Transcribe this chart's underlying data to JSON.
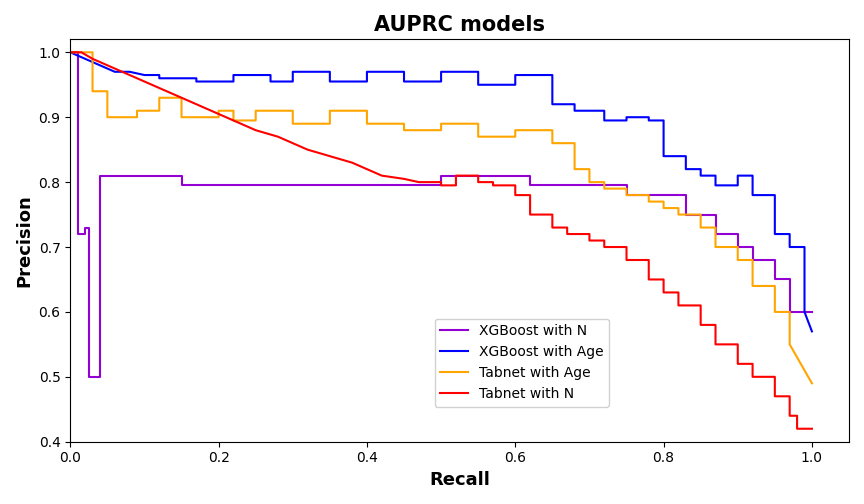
{
  "title": "AUPRC models",
  "xlabel": "Recall",
  "ylabel": "Precision",
  "xlim": [
    0.0,
    1.05
  ],
  "ylim": [
    0.4,
    1.02
  ],
  "colors": {
    "xgboost_n": "#9400D3",
    "xgboost_age": "#0000FF",
    "tabnet_age": "#FFA500",
    "tabnet_n": "#FF0000"
  },
  "xgb_n_r": [
    0.0,
    0.01,
    0.01,
    0.02,
    0.02,
    0.025,
    0.025,
    0.04,
    0.04,
    0.15,
    0.15,
    0.5,
    0.5,
    0.62,
    0.62,
    0.75,
    0.75,
    0.83,
    0.83,
    0.87,
    0.87,
    0.9,
    0.9,
    0.92,
    0.92,
    0.95,
    0.95,
    0.97,
    0.97,
    1.0
  ],
  "xgb_n_p": [
    1.0,
    1.0,
    0.72,
    0.72,
    0.73,
    0.73,
    0.5,
    0.5,
    0.81,
    0.81,
    0.795,
    0.795,
    0.81,
    0.81,
    0.795,
    0.795,
    0.78,
    0.78,
    0.75,
    0.75,
    0.72,
    0.72,
    0.7,
    0.7,
    0.68,
    0.68,
    0.65,
    0.65,
    0.6,
    0.6
  ],
  "xgb_age_r": [
    0.0,
    0.02,
    0.04,
    0.06,
    0.08,
    0.1,
    0.12,
    0.12,
    0.17,
    0.17,
    0.22,
    0.22,
    0.27,
    0.27,
    0.3,
    0.3,
    0.35,
    0.35,
    0.4,
    0.4,
    0.45,
    0.45,
    0.5,
    0.5,
    0.55,
    0.55,
    0.6,
    0.6,
    0.65,
    0.65,
    0.68,
    0.68,
    0.72,
    0.72,
    0.75,
    0.75,
    0.78,
    0.78,
    0.8,
    0.8,
    0.83,
    0.83,
    0.85,
    0.85,
    0.87,
    0.87,
    0.9,
    0.9,
    0.92,
    0.92,
    0.95,
    0.95,
    0.97,
    0.97,
    0.99,
    0.99,
    1.0
  ],
  "xgb_age_p": [
    1.0,
    0.99,
    0.98,
    0.97,
    0.97,
    0.965,
    0.965,
    0.96,
    0.96,
    0.955,
    0.955,
    0.965,
    0.965,
    0.955,
    0.955,
    0.97,
    0.97,
    0.955,
    0.955,
    0.97,
    0.97,
    0.955,
    0.955,
    0.97,
    0.97,
    0.95,
    0.95,
    0.965,
    0.965,
    0.92,
    0.92,
    0.91,
    0.91,
    0.895,
    0.895,
    0.9,
    0.9,
    0.895,
    0.895,
    0.84,
    0.84,
    0.82,
    0.82,
    0.81,
    0.81,
    0.795,
    0.795,
    0.81,
    0.81,
    0.78,
    0.78,
    0.72,
    0.72,
    0.7,
    0.7,
    0.6,
    0.57
  ],
  "tab_age_r": [
    0.0,
    0.03,
    0.03,
    0.05,
    0.05,
    0.09,
    0.09,
    0.12,
    0.12,
    0.15,
    0.15,
    0.2,
    0.2,
    0.22,
    0.22,
    0.25,
    0.25,
    0.3,
    0.3,
    0.35,
    0.35,
    0.4,
    0.4,
    0.45,
    0.45,
    0.5,
    0.5,
    0.55,
    0.55,
    0.6,
    0.6,
    0.65,
    0.65,
    0.68,
    0.68,
    0.7,
    0.7,
    0.72,
    0.72,
    0.75,
    0.75,
    0.78,
    0.78,
    0.8,
    0.8,
    0.82,
    0.82,
    0.85,
    0.85,
    0.87,
    0.87,
    0.9,
    0.9,
    0.92,
    0.92,
    0.95,
    0.95,
    0.97,
    0.97,
    1.0
  ],
  "tab_age_p": [
    1.0,
    1.0,
    0.94,
    0.94,
    0.9,
    0.9,
    0.91,
    0.91,
    0.93,
    0.93,
    0.9,
    0.9,
    0.91,
    0.91,
    0.895,
    0.895,
    0.91,
    0.91,
    0.89,
    0.89,
    0.91,
    0.91,
    0.89,
    0.89,
    0.88,
    0.88,
    0.89,
    0.89,
    0.87,
    0.87,
    0.88,
    0.88,
    0.86,
    0.86,
    0.82,
    0.82,
    0.8,
    0.8,
    0.79,
    0.79,
    0.78,
    0.78,
    0.77,
    0.77,
    0.76,
    0.76,
    0.75,
    0.75,
    0.73,
    0.73,
    0.7,
    0.7,
    0.68,
    0.68,
    0.64,
    0.64,
    0.6,
    0.6,
    0.55,
    0.49
  ],
  "tab_n_r": [
    0.0,
    0.015,
    0.03,
    0.05,
    0.07,
    0.09,
    0.11,
    0.13,
    0.15,
    0.17,
    0.2,
    0.22,
    0.25,
    0.28,
    0.3,
    0.32,
    0.35,
    0.38,
    0.4,
    0.42,
    0.45,
    0.47,
    0.5,
    0.5,
    0.52,
    0.52,
    0.55,
    0.55,
    0.57,
    0.57,
    0.6,
    0.6,
    0.62,
    0.62,
    0.65,
    0.65,
    0.67,
    0.67,
    0.7,
    0.7,
    0.72,
    0.72,
    0.75,
    0.75,
    0.78,
    0.78,
    0.8,
    0.8,
    0.82,
    0.82,
    0.85,
    0.85,
    0.87,
    0.87,
    0.9,
    0.9,
    0.92,
    0.92,
    0.95,
    0.95,
    0.97,
    0.97,
    0.98,
    0.98,
    1.0
  ],
  "tab_n_p": [
    1.0,
    1.0,
    0.99,
    0.98,
    0.97,
    0.96,
    0.95,
    0.94,
    0.93,
    0.92,
    0.905,
    0.895,
    0.88,
    0.87,
    0.86,
    0.85,
    0.84,
    0.83,
    0.82,
    0.81,
    0.805,
    0.8,
    0.8,
    0.795,
    0.795,
    0.81,
    0.81,
    0.8,
    0.8,
    0.795,
    0.795,
    0.78,
    0.78,
    0.75,
    0.75,
    0.73,
    0.73,
    0.72,
    0.72,
    0.71,
    0.71,
    0.7,
    0.7,
    0.68,
    0.68,
    0.65,
    0.65,
    0.63,
    0.63,
    0.61,
    0.61,
    0.58,
    0.58,
    0.55,
    0.55,
    0.52,
    0.52,
    0.5,
    0.5,
    0.47,
    0.47,
    0.44,
    0.44,
    0.42,
    0.42
  ]
}
